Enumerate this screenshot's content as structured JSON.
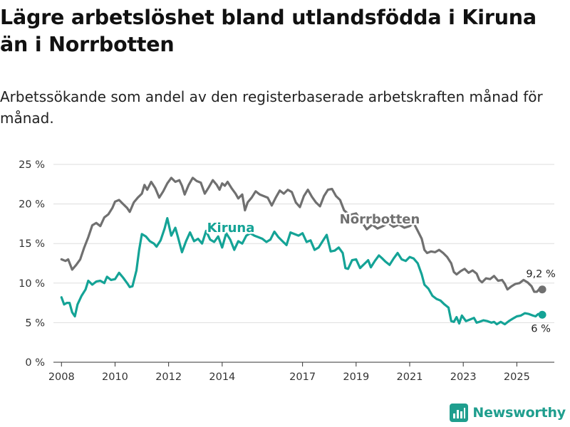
{
  "title": "Lägre arbetslöshet bland utlandsfödda i Kiruna än i Norrbotten",
  "subtitle": "Arbetssökande som andel av den registerbaserade arbetskraften månad för månad.",
  "brand": "Newsworthy",
  "colors": {
    "kiruna": "#14a396",
    "norrbotten": "#707070",
    "grid": "#dddddd",
    "text": "#333333"
  },
  "chart_data": {
    "type": "line",
    "title": "Lägre arbetslöshet bland utlandsfödda i Kiruna än i Norrbotten",
    "xlabel": "",
    "ylabel": "",
    "ylim": [
      0,
      25
    ],
    "xlim": [
      2007.7,
      2026.4
    ],
    "y_ticks": [
      0,
      5,
      10,
      15,
      20,
      25
    ],
    "y_tick_labels": [
      "0 %",
      "5 %",
      "10 %",
      "15 %",
      "20 %",
      "25 %"
    ],
    "x_ticks": [
      2008,
      2010,
      2012,
      2014,
      2017,
      2019,
      2021,
      2023,
      2025
    ],
    "x_tick_labels": [
      "2008",
      "2010",
      "2012",
      "2014",
      "2017",
      "2019",
      "2021",
      "2023",
      "2025"
    ],
    "series": [
      {
        "name": "Norrbotten",
        "label": "Norrbotten",
        "end_label": "9,2 %",
        "end_value": 9.2,
        "points": [
          [
            2008.0,
            13.0
          ],
          [
            2008.15,
            12.8
          ],
          [
            2008.25,
            13.0
          ],
          [
            2008.4,
            11.7
          ],
          [
            2008.55,
            12.3
          ],
          [
            2008.7,
            13.0
          ],
          [
            2008.85,
            14.5
          ],
          [
            2009.0,
            15.8
          ],
          [
            2009.15,
            17.3
          ],
          [
            2009.3,
            17.6
          ],
          [
            2009.45,
            17.2
          ],
          [
            2009.6,
            18.3
          ],
          [
            2009.75,
            18.7
          ],
          [
            2009.9,
            19.5
          ],
          [
            2010.0,
            20.3
          ],
          [
            2010.15,
            20.5
          ],
          [
            2010.3,
            20.0
          ],
          [
            2010.45,
            19.5
          ],
          [
            2010.55,
            19.0
          ],
          [
            2010.7,
            20.2
          ],
          [
            2010.85,
            20.8
          ],
          [
            2011.0,
            21.3
          ],
          [
            2011.1,
            22.4
          ],
          [
            2011.2,
            21.8
          ],
          [
            2011.35,
            22.8
          ],
          [
            2011.5,
            22.0
          ],
          [
            2011.65,
            20.8
          ],
          [
            2011.8,
            21.6
          ],
          [
            2011.95,
            22.6
          ],
          [
            2012.1,
            23.3
          ],
          [
            2012.25,
            22.8
          ],
          [
            2012.4,
            23.0
          ],
          [
            2012.5,
            22.3
          ],
          [
            2012.6,
            21.2
          ],
          [
            2012.75,
            22.4
          ],
          [
            2012.9,
            23.3
          ],
          [
            2013.05,
            22.9
          ],
          [
            2013.2,
            22.7
          ],
          [
            2013.35,
            21.3
          ],
          [
            2013.5,
            22.1
          ],
          [
            2013.65,
            23.0
          ],
          [
            2013.8,
            22.4
          ],
          [
            2013.9,
            21.8
          ],
          [
            2014.0,
            22.6
          ],
          [
            2014.1,
            22.3
          ],
          [
            2014.2,
            22.8
          ],
          [
            2014.35,
            22.0
          ],
          [
            2014.5,
            21.3
          ],
          [
            2014.6,
            20.7
          ],
          [
            2014.75,
            21.2
          ],
          [
            2014.85,
            19.2
          ],
          [
            2014.95,
            20.2
          ],
          [
            2015.1,
            20.8
          ],
          [
            2015.25,
            21.6
          ],
          [
            2015.4,
            21.2
          ],
          [
            2015.55,
            21.0
          ],
          [
            2015.7,
            20.8
          ],
          [
            2015.85,
            19.8
          ],
          [
            2016.0,
            20.8
          ],
          [
            2016.15,
            21.7
          ],
          [
            2016.3,
            21.3
          ],
          [
            2016.45,
            21.8
          ],
          [
            2016.6,
            21.5
          ],
          [
            2016.75,
            20.2
          ],
          [
            2016.9,
            19.6
          ],
          [
            2017.05,
            21.0
          ],
          [
            2017.2,
            21.8
          ],
          [
            2017.35,
            20.9
          ],
          [
            2017.5,
            20.2
          ],
          [
            2017.65,
            19.7
          ],
          [
            2017.8,
            21.0
          ],
          [
            2017.95,
            21.8
          ],
          [
            2018.1,
            21.9
          ],
          [
            2018.25,
            21.0
          ],
          [
            2018.4,
            20.5
          ],
          [
            2018.55,
            19.2
          ],
          [
            2018.75,
            18.6
          ],
          [
            2019.0,
            18.8
          ],
          [
            2019.2,
            17.8
          ],
          [
            2019.4,
            16.8
          ],
          [
            2019.6,
            17.4
          ],
          [
            2019.8,
            16.9
          ],
          [
            2020.0,
            17.2
          ],
          [
            2020.2,
            17.6
          ],
          [
            2020.4,
            17.1
          ],
          [
            2020.6,
            17.4
          ],
          [
            2020.8,
            17.0
          ],
          [
            2021.0,
            17.2
          ],
          [
            2021.15,
            17.6
          ],
          [
            2021.3,
            16.6
          ],
          [
            2021.45,
            15.6
          ],
          [
            2021.55,
            14.2
          ],
          [
            2021.65,
            13.8
          ],
          [
            2021.8,
            14.0
          ],
          [
            2021.95,
            13.9
          ],
          [
            2022.1,
            14.2
          ],
          [
            2022.25,
            13.8
          ],
          [
            2022.4,
            13.3
          ],
          [
            2022.55,
            12.5
          ],
          [
            2022.65,
            11.4
          ],
          [
            2022.75,
            11.1
          ],
          [
            2022.9,
            11.5
          ],
          [
            2023.05,
            11.8
          ],
          [
            2023.2,
            11.3
          ],
          [
            2023.35,
            11.6
          ],
          [
            2023.5,
            11.2
          ],
          [
            2023.6,
            10.4
          ],
          [
            2023.7,
            10.1
          ],
          [
            2023.85,
            10.6
          ],
          [
            2024.0,
            10.5
          ],
          [
            2024.15,
            10.9
          ],
          [
            2024.3,
            10.3
          ],
          [
            2024.45,
            10.4
          ],
          [
            2024.55,
            9.9
          ],
          [
            2024.65,
            9.2
          ],
          [
            2024.8,
            9.6
          ],
          [
            2024.95,
            9.9
          ],
          [
            2025.1,
            10.0
          ],
          [
            2025.25,
            10.4
          ],
          [
            2025.4,
            10.1
          ],
          [
            2025.55,
            9.6
          ],
          [
            2025.65,
            8.9
          ],
          [
            2025.75,
            8.9
          ],
          [
            2025.85,
            9.3
          ],
          [
            2025.95,
            9.2
          ]
        ]
      },
      {
        "name": "Kiruna",
        "label": "Kiruna",
        "end_label": "6 %",
        "end_value": 6.0,
        "points": [
          [
            2008.0,
            8.2
          ],
          [
            2008.1,
            7.3
          ],
          [
            2008.2,
            7.5
          ],
          [
            2008.3,
            7.5
          ],
          [
            2008.4,
            6.3
          ],
          [
            2008.5,
            5.8
          ],
          [
            2008.6,
            7.3
          ],
          [
            2008.75,
            8.4
          ],
          [
            2008.9,
            9.2
          ],
          [
            2009.0,
            10.3
          ],
          [
            2009.15,
            9.8
          ],
          [
            2009.3,
            10.2
          ],
          [
            2009.45,
            10.3
          ],
          [
            2009.6,
            10.0
          ],
          [
            2009.7,
            10.8
          ],
          [
            2009.85,
            10.4
          ],
          [
            2010.0,
            10.5
          ],
          [
            2010.15,
            11.3
          ],
          [
            2010.3,
            10.7
          ],
          [
            2010.45,
            10.0
          ],
          [
            2010.55,
            9.5
          ],
          [
            2010.65,
            9.6
          ],
          [
            2010.8,
            11.6
          ],
          [
            2010.9,
            14.2
          ],
          [
            2011.0,
            16.2
          ],
          [
            2011.15,
            15.9
          ],
          [
            2011.3,
            15.3
          ],
          [
            2011.45,
            15.0
          ],
          [
            2011.55,
            14.6
          ],
          [
            2011.7,
            15.4
          ],
          [
            2011.85,
            16.9
          ],
          [
            2011.95,
            18.2
          ],
          [
            2012.1,
            16.0
          ],
          [
            2012.25,
            17.0
          ],
          [
            2012.35,
            15.8
          ],
          [
            2012.5,
            13.9
          ],
          [
            2012.65,
            15.3
          ],
          [
            2012.8,
            16.4
          ],
          [
            2012.95,
            15.3
          ],
          [
            2013.1,
            15.6
          ],
          [
            2013.25,
            15.0
          ],
          [
            2013.4,
            16.6
          ],
          [
            2013.55,
            15.5
          ],
          [
            2013.7,
            15.2
          ],
          [
            2013.85,
            15.9
          ],
          [
            2014.0,
            14.5
          ],
          [
            2014.15,
            16.3
          ],
          [
            2014.3,
            15.5
          ],
          [
            2014.45,
            14.2
          ],
          [
            2014.6,
            15.3
          ],
          [
            2014.75,
            15.0
          ],
          [
            2014.9,
            16.0
          ],
          [
            2015.05,
            16.3
          ],
          [
            2015.2,
            16.0
          ],
          [
            2015.35,
            15.8
          ],
          [
            2015.5,
            15.6
          ],
          [
            2015.65,
            15.2
          ],
          [
            2015.8,
            15.5
          ],
          [
            2015.95,
            16.5
          ],
          [
            2016.1,
            15.8
          ],
          [
            2016.25,
            15.3
          ],
          [
            2016.4,
            14.8
          ],
          [
            2016.55,
            16.4
          ],
          [
            2016.7,
            16.2
          ],
          [
            2016.85,
            16.0
          ],
          [
            2017.0,
            16.3
          ],
          [
            2017.15,
            15.2
          ],
          [
            2017.3,
            15.4
          ],
          [
            2017.45,
            14.2
          ],
          [
            2017.6,
            14.5
          ],
          [
            2017.75,
            15.3
          ],
          [
            2017.9,
            16.1
          ],
          [
            2018.05,
            14.0
          ],
          [
            2018.2,
            14.1
          ],
          [
            2018.35,
            14.5
          ],
          [
            2018.5,
            13.8
          ],
          [
            2018.6,
            11.9
          ],
          [
            2018.7,
            11.8
          ],
          [
            2018.85,
            12.9
          ],
          [
            2019.0,
            13.0
          ],
          [
            2019.15,
            11.9
          ],
          [
            2019.3,
            12.4
          ],
          [
            2019.45,
            12.9
          ],
          [
            2019.55,
            12.0
          ],
          [
            2019.7,
            12.8
          ],
          [
            2019.85,
            13.5
          ],
          [
            2019.95,
            13.2
          ],
          [
            2020.1,
            12.7
          ],
          [
            2020.25,
            12.3
          ],
          [
            2020.4,
            13.1
          ],
          [
            2020.55,
            13.8
          ],
          [
            2020.7,
            13.0
          ],
          [
            2020.85,
            12.8
          ],
          [
            2021.0,
            13.3
          ],
          [
            2021.15,
            13.1
          ],
          [
            2021.3,
            12.5
          ],
          [
            2021.45,
            11.1
          ],
          [
            2021.55,
            9.8
          ],
          [
            2021.7,
            9.3
          ],
          [
            2021.85,
            8.4
          ],
          [
            2022.0,
            8.0
          ],
          [
            2022.15,
            7.8
          ],
          [
            2022.3,
            7.3
          ],
          [
            2022.45,
            6.9
          ],
          [
            2022.55,
            5.2
          ],
          [
            2022.65,
            5.1
          ],
          [
            2022.75,
            5.7
          ],
          [
            2022.85,
            4.9
          ],
          [
            2022.95,
            5.9
          ],
          [
            2023.1,
            5.2
          ],
          [
            2023.25,
            5.4
          ],
          [
            2023.4,
            5.6
          ],
          [
            2023.5,
            5.0
          ],
          [
            2023.6,
            5.1
          ],
          [
            2023.75,
            5.3
          ],
          [
            2023.9,
            5.2
          ],
          [
            2024.05,
            5.0
          ],
          [
            2024.15,
            5.1
          ],
          [
            2024.25,
            4.8
          ],
          [
            2024.4,
            5.1
          ],
          [
            2024.55,
            4.8
          ],
          [
            2024.7,
            5.2
          ],
          [
            2024.85,
            5.5
          ],
          [
            2025.0,
            5.8
          ],
          [
            2025.15,
            5.9
          ],
          [
            2025.3,
            6.2
          ],
          [
            2025.45,
            6.1
          ],
          [
            2025.6,
            5.9
          ],
          [
            2025.7,
            5.8
          ],
          [
            2025.8,
            6.1
          ],
          [
            2025.95,
            6.0
          ]
        ]
      }
    ]
  }
}
